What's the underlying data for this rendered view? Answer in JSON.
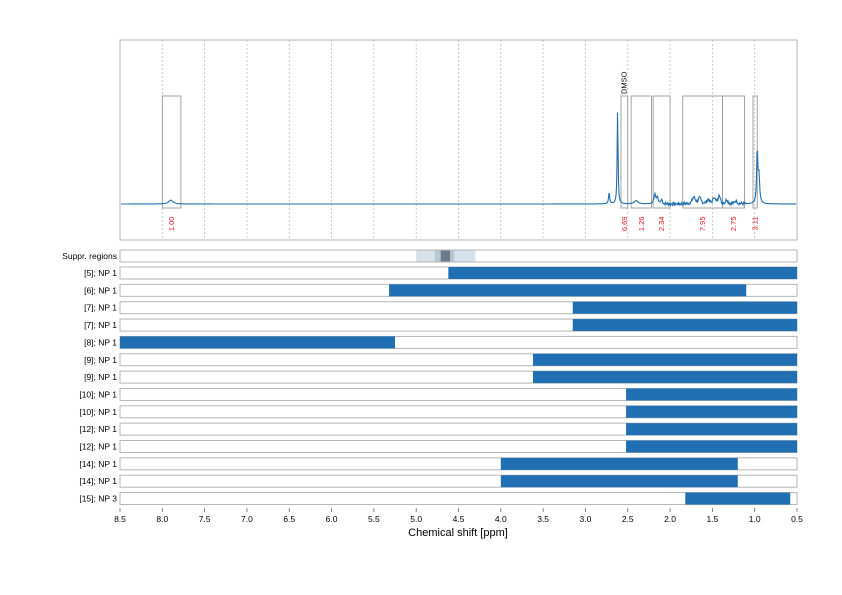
{
  "chart_data": {
    "type": "line",
    "xlabel": "Chemical shift [ppm]",
    "xlim": [
      8.5,
      0.5
    ],
    "x_reversed": true,
    "x_ticks": [
      "8.5",
      "8.0",
      "7.5",
      "7.0",
      "6.5",
      "6.0",
      "5.5",
      "5.0",
      "4.5",
      "4.0",
      "3.5",
      "3.0",
      "2.5",
      "2.0",
      "1.5",
      "1.0",
      "0.5"
    ],
    "colors": {
      "spectrum": "#1f6fb2",
      "bar": "#1f6fb2",
      "integral_label": "#e3141b",
      "box": "#9a9a9a",
      "suppr_light": "#d7e1ea",
      "suppr_mid": "#b6c6d3",
      "suppr_dark": "#6b7d8c"
    },
    "spectrum": {
      "baseline": 0,
      "peaks": [
        {
          "ppm": 7.9,
          "height": 0.035,
          "width": 0.03
        },
        {
          "ppm": 2.72,
          "height": 0.1,
          "width": 0.008
        },
        {
          "ppm": 2.62,
          "height": 0.86,
          "width": 0.006
        },
        {
          "ppm": 2.4,
          "height": 0.03,
          "width": 0.025
        },
        {
          "ppm": 2.18,
          "height": 0.09,
          "width": 0.012
        },
        {
          "ppm": 2.15,
          "height": 0.06,
          "width": 0.01
        },
        {
          "ppm": 2.1,
          "height": 0.04,
          "width": 0.01
        },
        {
          "ppm": 1.72,
          "height": 0.06,
          "width": 0.02
        },
        {
          "ppm": 1.65,
          "height": 0.05,
          "width": 0.02
        },
        {
          "ppm": 1.55,
          "height": 0.04,
          "width": 0.015
        },
        {
          "ppm": 1.48,
          "height": 0.06,
          "width": 0.015
        },
        {
          "ppm": 1.42,
          "height": 0.09,
          "width": 0.012
        },
        {
          "ppm": 1.33,
          "height": 0.04,
          "width": 0.015
        },
        {
          "ppm": 1.22,
          "height": 0.03,
          "width": 0.015
        },
        {
          "ppm": 0.97,
          "height": 0.48,
          "width": 0.008
        },
        {
          "ppm": 0.95,
          "height": 0.25,
          "width": 0.01
        }
      ]
    },
    "integration_regions": [
      {
        "from": 8.0,
        "to": 7.78,
        "label": "1.00"
      },
      {
        "from": 2.58,
        "to": 2.5,
        "label": "6.69",
        "annotation": "DMSO"
      },
      {
        "from": 2.46,
        "to": 2.22,
        "label": "1.26"
      },
      {
        "from": 2.2,
        "to": 2.0,
        "label": "2.34"
      },
      {
        "from": 1.85,
        "to": 1.38,
        "label": "7.95"
      },
      {
        "from": 1.38,
        "to": 1.12,
        "label": "2.75"
      },
      {
        "from": 1.02,
        "to": 0.97,
        "label": "3.11"
      }
    ],
    "suppression": {
      "label": "Suppr. regions",
      "regions": [
        {
          "from": 5.0,
          "to": 4.3,
          "level": "light"
        },
        {
          "from": 4.78,
          "to": 4.55,
          "level": "mid"
        },
        {
          "from": 4.71,
          "to": 4.6,
          "level": "dark"
        }
      ]
    },
    "rows": [
      {
        "label": "[5]; NP 1",
        "from": 4.62,
        "to": 0.5
      },
      {
        "label": "[6]; NP 1",
        "from": 5.32,
        "to": 1.1
      },
      {
        "label": "[7]; NP 1",
        "from": 3.15,
        "to": 0.5
      },
      {
        "label": "[7]; NP 1",
        "from": 3.15,
        "to": 0.5
      },
      {
        "label": "[8]; NP 1",
        "from": 8.5,
        "to": 5.25
      },
      {
        "label": "[9]; NP 1",
        "from": 3.62,
        "to": 0.5
      },
      {
        "label": "[9]; NP 1",
        "from": 3.62,
        "to": 0.5
      },
      {
        "label": "[10]; NP 1",
        "from": 2.52,
        "to": 0.5
      },
      {
        "label": "[10]; NP 1",
        "from": 2.52,
        "to": 0.5
      },
      {
        "label": "[12]; NP 1",
        "from": 2.52,
        "to": 0.5
      },
      {
        "label": "[12]; NP 1",
        "from": 2.52,
        "to": 0.5
      },
      {
        "label": "[14]; NP 1",
        "from": 4.0,
        "to": 1.2
      },
      {
        "label": "[14]; NP 1",
        "from": 4.0,
        "to": 1.2
      },
      {
        "label": "[15]; NP 3",
        "from": 1.82,
        "to": 0.58
      }
    ]
  }
}
